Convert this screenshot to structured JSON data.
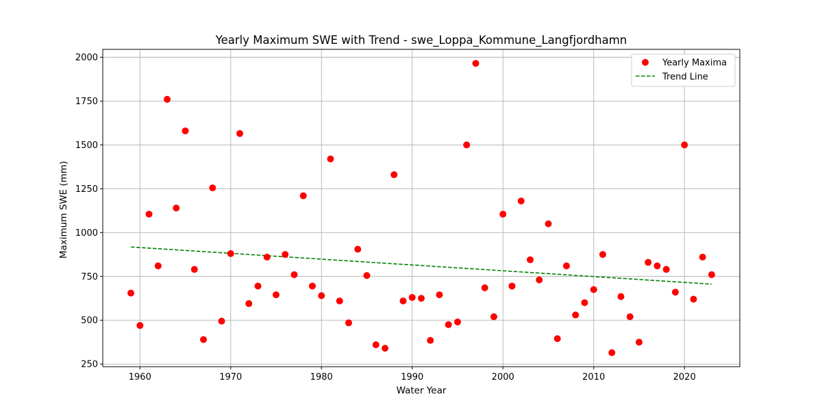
{
  "chart_data": {
    "type": "scatter",
    "title": "Yearly Maximum SWE with Trend - swe_Loppa_Kommune_Langfjordhamn",
    "xlabel": "Water Year",
    "ylabel": "Maximum SWE (mm)",
    "xlim": [
      1955.9,
      2026.1
    ],
    "ylim": [
      235,
      2045
    ],
    "xticks": [
      1960,
      1970,
      1980,
      1990,
      2000,
      2010,
      2020
    ],
    "yticks": [
      250,
      500,
      750,
      1000,
      1250,
      1500,
      1750,
      2000
    ],
    "grid": true,
    "legend_position": "top-right",
    "colors": {
      "points": "#ff0000",
      "trend": "#008000"
    },
    "series": [
      {
        "name": "Yearly Maxima",
        "kind": "scatter",
        "x": [
          1959,
          1960,
          1961,
          1962,
          1963,
          1964,
          1965,
          1966,
          1967,
          1968,
          1969,
          1970,
          1971,
          1972,
          1973,
          1974,
          1975,
          1976,
          1977,
          1978,
          1979,
          1980,
          1981,
          1982,
          1983,
          1984,
          1985,
          1986,
          1987,
          1988,
          1989,
          1990,
          1991,
          1992,
          1993,
          1994,
          1995,
          1996,
          1997,
          1998,
          1999,
          2000,
          2001,
          2002,
          2003,
          2004,
          2005,
          2006,
          2007,
          2008,
          2009,
          2010,
          2011,
          2012,
          2013,
          2014,
          2015,
          2016,
          2017,
          2018,
          2019,
          2020,
          2021,
          2022,
          2023
        ],
        "y": [
          655,
          470,
          1105,
          810,
          1760,
          1140,
          1580,
          790,
          390,
          1255,
          495,
          880,
          1565,
          595,
          695,
          860,
          645,
          875,
          760,
          1210,
          695,
          640,
          1420,
          610,
          485,
          905,
          755,
          360,
          340,
          1330,
          610,
          630,
          625,
          385,
          645,
          475,
          490,
          1500,
          1965,
          685,
          520,
          1105,
          695,
          1180,
          845,
          730,
          1050,
          395,
          810,
          530,
          600,
          675,
          875,
          315,
          635,
          520,
          375,
          830,
          810,
          790,
          660,
          1500,
          620,
          860,
          760
        ]
      },
      {
        "name": "Trend Line",
        "kind": "line",
        "x": [
          1959,
          2023
        ],
        "y": [
          918,
          706
        ]
      }
    ]
  }
}
